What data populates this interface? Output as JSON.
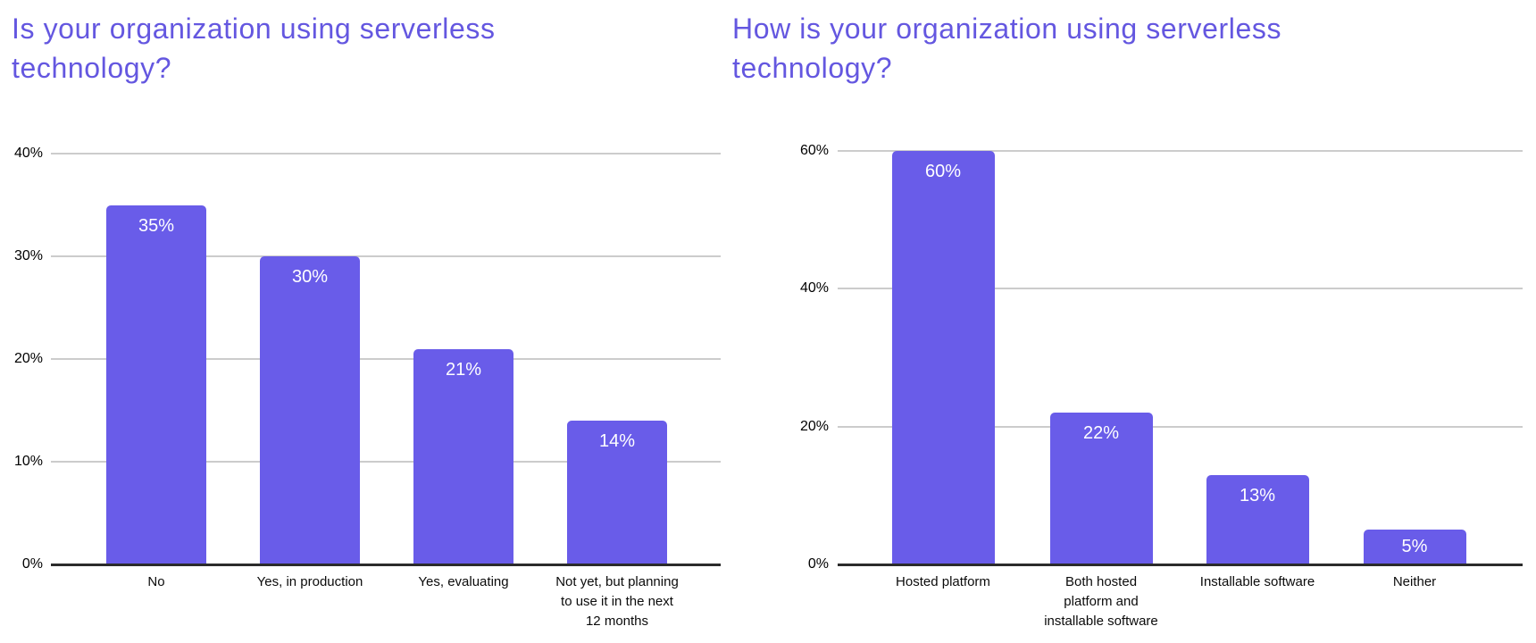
{
  "page": {
    "background": "#ffffff"
  },
  "colors": {
    "bar_fill": "#695CE9",
    "title_text": "#6457E0",
    "gridline": "#cccccc",
    "axis_line": "#2b2b2b",
    "tick_label": "#000000",
    "value_label": "#ffffff"
  },
  "chart_data": [
    {
      "type": "bar",
      "title": "Is your organization using serverless technology?",
      "categories": [
        "No",
        "Yes, in production",
        "Yes, evaluating",
        "Not yet, but planning to use it in the next 12 months"
      ],
      "category_lines": [
        [
          "No"
        ],
        [
          "Yes, in production"
        ],
        [
          "Yes, evaluating"
        ],
        [
          "Not yet, but planning",
          "to use it in the next",
          "12 months"
        ]
      ],
      "values": [
        35,
        30,
        21,
        14
      ],
      "value_labels": [
        "35%",
        "30%",
        "21%",
        "14%"
      ],
      "ylim": [
        0,
        40
      ],
      "yticks": [
        0,
        10,
        20,
        30,
        40
      ],
      "ytick_labels": [
        "0%",
        "10%",
        "20%",
        "30%",
        "40%"
      ],
      "grid": true,
      "legend": "none",
      "xlabel": "",
      "ylabel": ""
    },
    {
      "type": "bar",
      "title": "How is your organization using serverless technology?",
      "categories": [
        "Hosted platform",
        "Both hosted platform and installable software",
        "Installable software",
        "Neither"
      ],
      "category_lines": [
        [
          "Hosted platform"
        ],
        [
          "Both hosted",
          "platform and",
          "installable software"
        ],
        [
          "Installable software"
        ],
        [
          "Neither"
        ]
      ],
      "values": [
        60,
        22,
        13,
        5
      ],
      "value_labels": [
        "60%",
        "22%",
        "13%",
        "5%"
      ],
      "ylim": [
        0,
        60
      ],
      "yticks": [
        0,
        20,
        40,
        60
      ],
      "ytick_labels": [
        "0%",
        "20%",
        "40%",
        "60%"
      ],
      "grid": true,
      "legend": "none",
      "xlabel": "",
      "ylabel": ""
    }
  ]
}
